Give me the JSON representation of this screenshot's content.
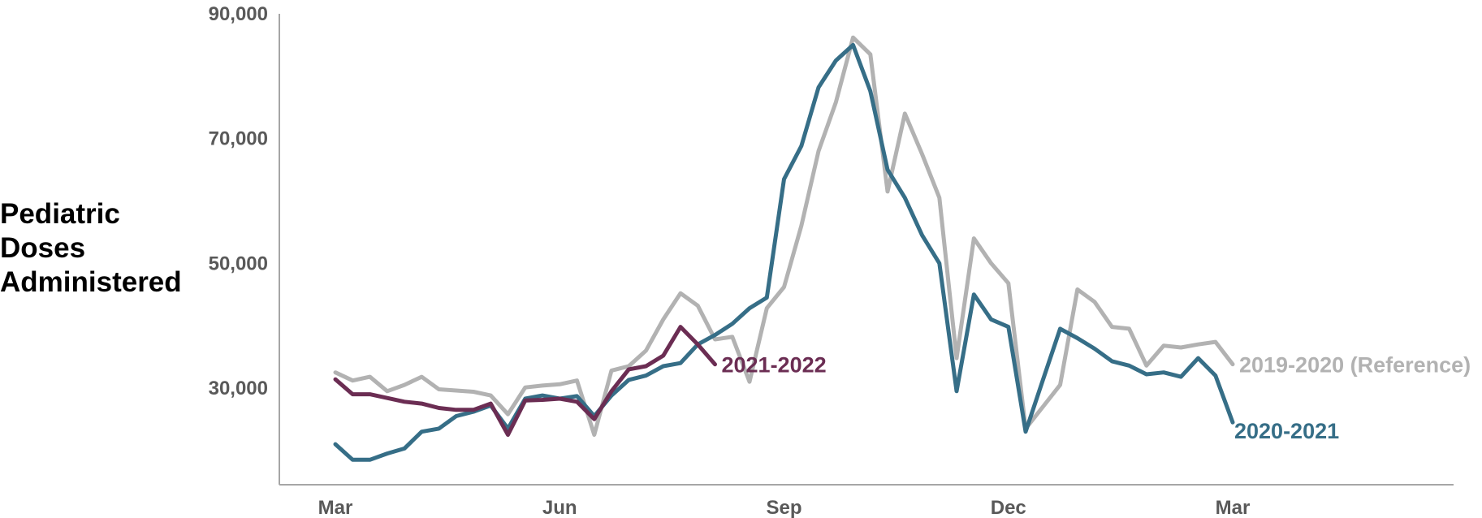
{
  "chart_data": {
    "type": "line",
    "title": "",
    "ylabel_lines": [
      "Pediatric",
      "Doses",
      "Administered"
    ],
    "xlabel": "",
    "x_ticks": [
      {
        "label": "Mar",
        "week": 0
      },
      {
        "label": "Jun",
        "week": 13
      },
      {
        "label": "Sep",
        "week": 26
      },
      {
        "label": "Dec",
        "week": 39
      },
      {
        "label": "Mar",
        "week": 52
      }
    ],
    "x_range": [
      -1,
      68
    ],
    "y_ticks": [
      {
        "label": "30,000",
        "value": 30000
      },
      {
        "label": "50,000",
        "value": 50000
      },
      {
        "label": "70,000",
        "value": 70000
      },
      {
        "label": "90,000",
        "value": 90000
      }
    ],
    "ylim": [
      14500,
      90000
    ],
    "grid": false,
    "series": [
      {
        "name": "2019-2020 (Reference)",
        "color": "#b2b2b2",
        "values": [
          32500,
          31200,
          31800,
          29500,
          30500,
          31800,
          29800,
          29600,
          29400,
          28800,
          25800,
          30100,
          30400,
          30600,
          31200,
          22500,
          32800,
          33500,
          36000,
          41000,
          45200,
          43200,
          37800,
          38200,
          31000,
          42800,
          46200,
          56000,
          68000,
          75800,
          86200,
          83500,
          61500,
          74000,
          67500,
          60500,
          34800,
          54000,
          50000,
          46800,
          23500,
          27000,
          30500,
          45800,
          43800,
          39800,
          39500,
          33600,
          36800,
          36500,
          37000,
          37400,
          33800
        ]
      },
      {
        "name": "2020-2021",
        "color": "#366e87",
        "values": [
          21000,
          18500,
          18500,
          19500,
          20300,
          23000,
          23500,
          25500,
          26200,
          27200,
          23500,
          28300,
          28800,
          28300,
          28700,
          25500,
          28800,
          31300,
          32000,
          33500,
          34000,
          37000,
          38500,
          40300,
          42800,
          44500,
          63500,
          68800,
          78200,
          82500,
          85000,
          77600,
          65000,
          60500,
          54500,
          50000,
          29500,
          45000,
          41000,
          39800,
          23000,
          31300,
          39500,
          38000,
          36300,
          34300,
          33600,
          32200,
          32500,
          31800,
          34800,
          32000,
          24500
        ]
      },
      {
        "name": "2021-2022",
        "color": "#6b2d53",
        "values": [
          31400,
          29000,
          29000,
          28400,
          27800,
          27500,
          26800,
          26500,
          26500,
          27500,
          22500,
          28000,
          28100,
          28300,
          27800,
          25000,
          29500,
          33000,
          33500,
          35200,
          39800,
          37000,
          33800
        ]
      }
    ]
  }
}
